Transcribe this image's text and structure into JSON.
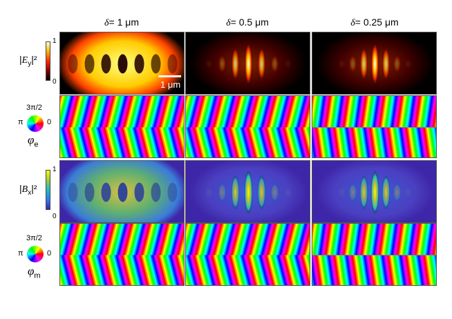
{
  "columns": [
    {
      "symbol": "δ",
      "value": "= 1 μm"
    },
    {
      "symbol": "δ",
      "value": "= 0.5 μm"
    },
    {
      "symbol": "δ",
      "value": "= 0.25 μm"
    }
  ],
  "rows": {
    "ey": {
      "label_prefix": "|",
      "label_var": "E",
      "label_sub": "y",
      "label_suffix": "|²",
      "cbar_max": "1",
      "cbar_min": "0"
    },
    "phi_e": {
      "wheel_top": "3π/2",
      "wheel_left": "π",
      "wheel_right": "0",
      "symbol": "φ",
      "sub": "e"
    },
    "bx": {
      "label_prefix": "|",
      "label_var": "B",
      "label_sub": "x",
      "label_suffix": "|²",
      "cbar_max": "1",
      "cbar_min": "0"
    },
    "phi_m": {
      "wheel_top": "3π/2",
      "wheel_left": "π",
      "wheel_right": "0",
      "symbol": "φ",
      "sub": "m"
    }
  },
  "scalebar": {
    "label": "1 μm"
  },
  "colors": {
    "hot_dark": "#000000",
    "hot_mid": "#e02000",
    "hot_high": "#ffcc00",
    "hot_top": "#ffffff",
    "parula_low": "#3e26a8",
    "parula_mid": "#1fbfbd",
    "parula_high": "#f9fb0e"
  }
}
